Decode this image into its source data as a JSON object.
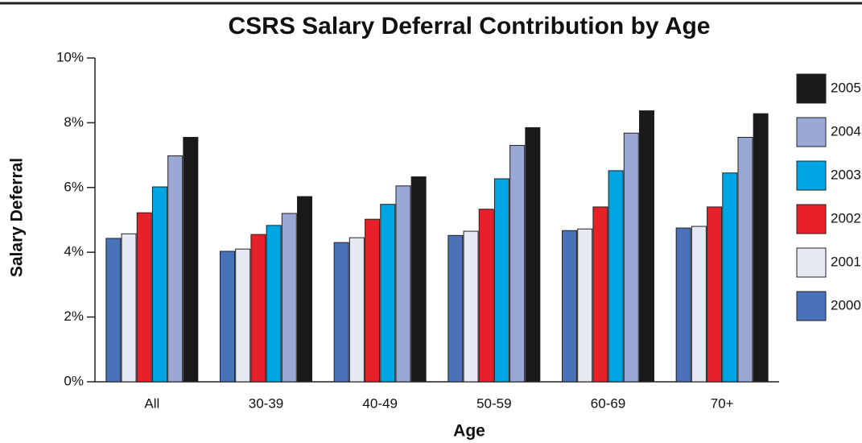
{
  "chart_data": {
    "type": "bar",
    "title": "CSRS Salary Deferral Contribution by Age",
    "x_label": "Age",
    "y_label": "Salary Deferral",
    "categories": [
      "All",
      "30-39",
      "40-49",
      "50-59",
      "60-69",
      "70+"
    ],
    "series": [
      {
        "name": "2000",
        "color": "#4a72b8",
        "values": [
          4.43,
          4.03,
          4.3,
          4.52,
          4.67,
          4.75
        ]
      },
      {
        "name": "2001",
        "color": "#e6e8f4",
        "values": [
          4.57,
          4.1,
          4.45,
          4.65,
          4.72,
          4.8
        ]
      },
      {
        "name": "2002",
        "color": "#e8202a",
        "values": [
          5.22,
          4.55,
          5.02,
          5.33,
          5.4,
          5.4
        ]
      },
      {
        "name": "2003",
        "color": "#00a5e3",
        "values": [
          6.02,
          4.83,
          5.48,
          6.27,
          6.52,
          6.45
        ]
      },
      {
        "name": "2004",
        "color": "#9aa8d6",
        "values": [
          6.98,
          5.2,
          6.05,
          7.3,
          7.68,
          7.55
        ]
      },
      {
        "name": "2005",
        "color": "#1a1a1a",
        "values": [
          7.55,
          5.72,
          6.33,
          7.85,
          8.37,
          8.28
        ]
      }
    ],
    "ylim": [
      0,
      10
    ],
    "yticks": [
      {
        "value": 0,
        "label": "0%"
      },
      {
        "value": 2,
        "label": "2%"
      },
      {
        "value": 4,
        "label": "4%"
      },
      {
        "value": 6,
        "label": "6%"
      },
      {
        "value": 8,
        "label": "8%"
      },
      {
        "value": 10,
        "label": "10%"
      }
    ],
    "legend": "right"
  }
}
